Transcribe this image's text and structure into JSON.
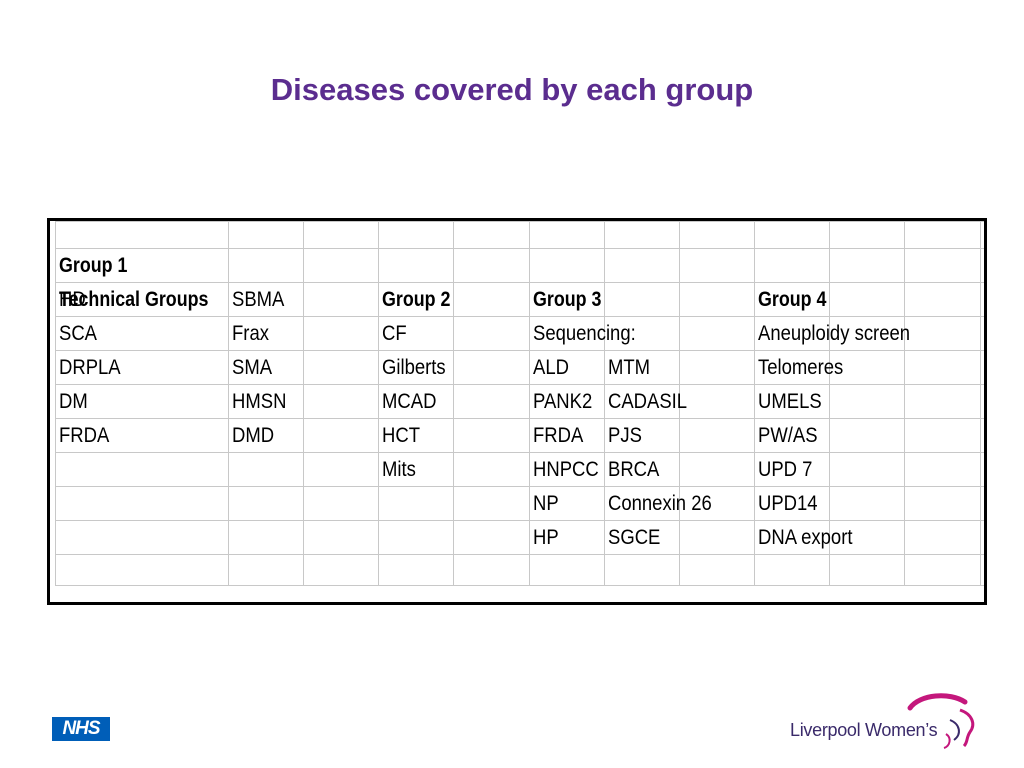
{
  "title": "Diseases covered by each group",
  "table": {
    "rows": [
      [
        "",
        "",
        "",
        "",
        "",
        "",
        "",
        "",
        "",
        "",
        "",
        "",
        ""
      ],
      [
        "",
        "Group 1",
        "",
        "",
        "",
        "",
        "",
        "",
        "",
        "",
        "",
        "",
        ""
      ],
      [
        "Technical Groups",
        "HD",
        "SBMA",
        "",
        "Group 2",
        "",
        "Group 3",
        "",
        "",
        "Group 4",
        "",
        "",
        ""
      ],
      [
        "",
        "SCA",
        "Frax",
        "",
        "CF",
        "",
        "Sequencing:",
        "",
        "",
        "Aneuploidy screen",
        "",
        "",
        ""
      ],
      [
        "",
        "DRPLA",
        "SMA",
        "",
        "Gilberts",
        "",
        "ALD",
        "MTM",
        "",
        "Telomeres",
        "",
        "",
        ""
      ],
      [
        "",
        "DM",
        "HMSN",
        "",
        "MCAD",
        "",
        "PANK2",
        "CADASIL",
        "",
        "UMELS",
        "",
        "",
        ""
      ],
      [
        "",
        "FRDA",
        "DMD",
        "",
        "HCT",
        "",
        "FRDA",
        "PJS",
        "",
        "PW/AS",
        "",
        "",
        ""
      ],
      [
        "",
        "",
        "",
        "",
        "Mits",
        "",
        "HNPCC",
        "BRCA",
        "",
        "UPD 7",
        "",
        "",
        ""
      ],
      [
        "",
        "",
        "",
        "",
        "",
        "",
        "NP",
        "Connexin 26",
        "",
        "UPD14",
        "",
        "",
        ""
      ],
      [
        "",
        "",
        "",
        "",
        "",
        "",
        "HP",
        "SGCE",
        "",
        "DNA export",
        "",
        "",
        ""
      ],
      [
        "",
        "",
        "",
        "",
        "",
        "",
        "",
        "",
        "",
        "",
        "",
        "",
        ""
      ]
    ],
    "bold_cells": [
      "Technical Groups",
      "Group 1",
      "Group 2",
      "Group 3",
      "Group 4"
    ]
  },
  "footer": {
    "nhs_logo": "NHS",
    "trust_name": "Liverpool Women’s"
  },
  "colors": {
    "title": "#5b2d8f",
    "nhs_blue": "#005eb8",
    "logo_magenta": "#c4177c"
  }
}
